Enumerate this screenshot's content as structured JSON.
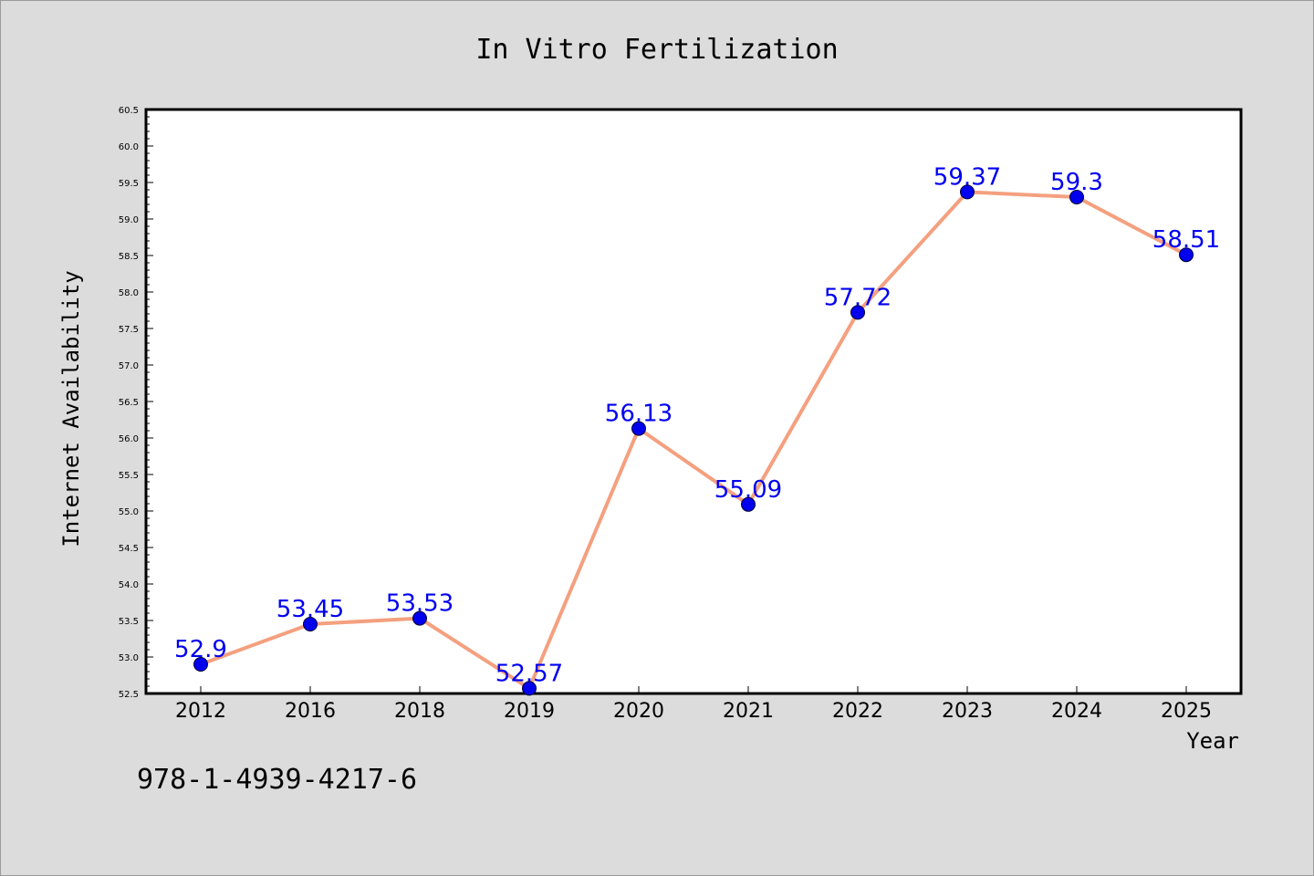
{
  "chart_data": {
    "type": "line",
    "title": "In Vitro Fertilization",
    "xlabel": "Year",
    "ylabel": "Internet Availability",
    "categories": [
      "2012",
      "2016",
      "2018",
      "2019",
      "2020",
      "2021",
      "2022",
      "2023",
      "2024",
      "2025"
    ],
    "values": [
      52.9,
      53.45,
      53.53,
      52.57,
      56.13,
      55.09,
      57.72,
      59.37,
      59.3,
      58.51
    ],
    "data_labels": [
      "52.9",
      "53.45",
      "53.53",
      "52.57",
      "56.13",
      "55.09",
      "57.72",
      "59.37",
      "59.3",
      "58.51"
    ],
    "y_ticks": [
      "52.5",
      "53.0",
      "53.5",
      "54.0",
      "54.5",
      "55.0",
      "55.5",
      "56.0",
      "56.5",
      "57.0",
      "57.5",
      "58.0",
      "58.5",
      "59.0",
      "59.5",
      "60.0",
      "60.5"
    ],
    "ylim": [
      52.5,
      60.5
    ],
    "grid": false,
    "colors": {
      "line": "#f4a07f",
      "marker": "#0000ee",
      "label": "#0000ee",
      "background": "#dcdcdc",
      "plot_background": "#ffffff"
    }
  },
  "footer": {
    "isbn": "978-1-4939-4217-6"
  }
}
